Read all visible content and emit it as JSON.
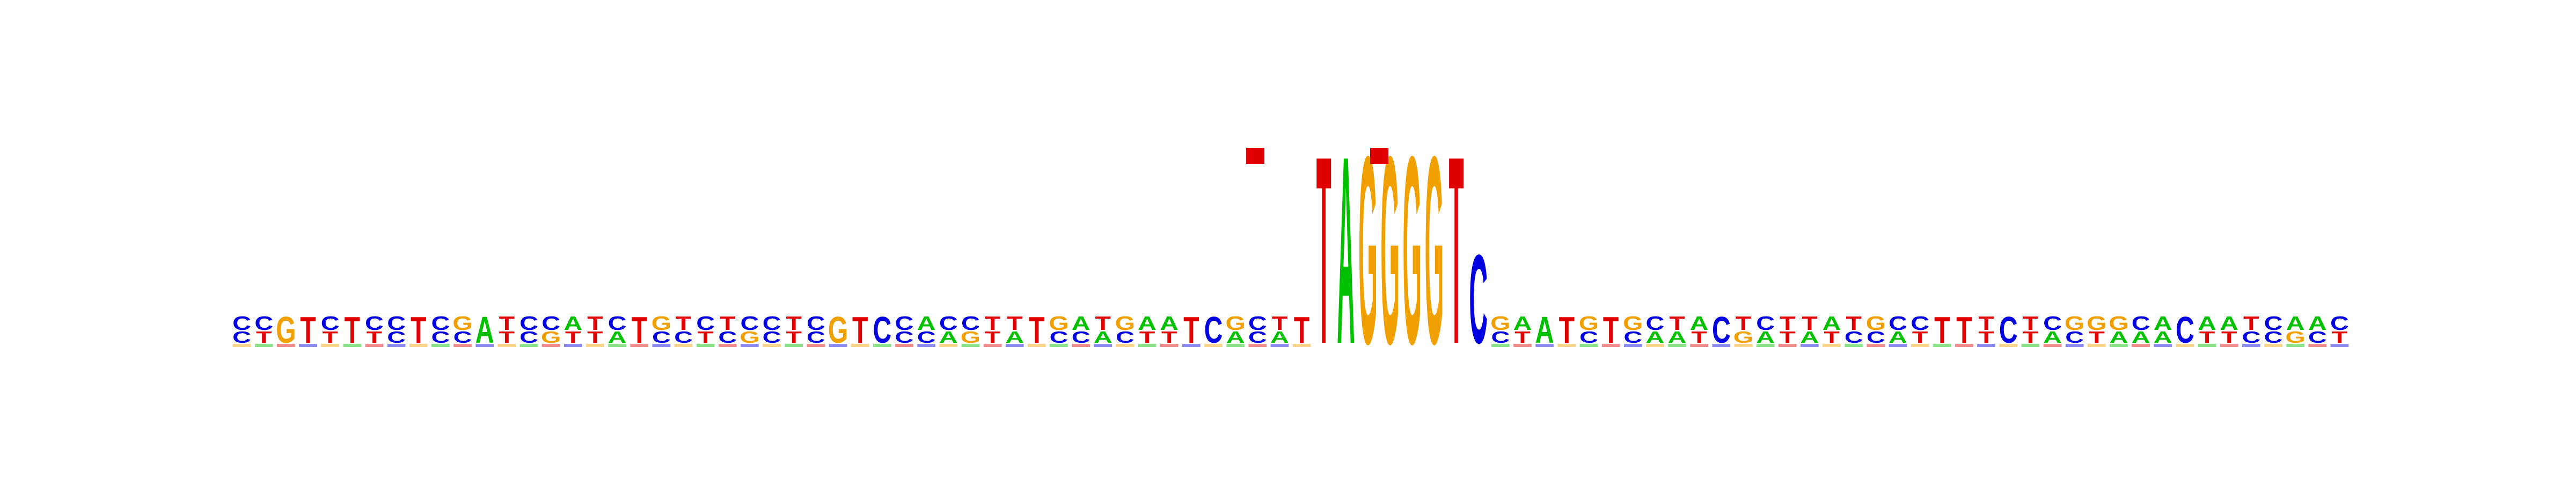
{
  "logo": {
    "colors": {
      "A": "#00c000",
      "C": "#0000e0",
      "G": "#f0a000",
      "T": "#e00000"
    },
    "columns": [
      [
        "C",
        "C"
      ],
      [
        "C",
        "T"
      ],
      [
        "G"
      ],
      [
        "T"
      ],
      [
        "C",
        "T"
      ],
      [
        "T"
      ],
      [
        "C",
        "T"
      ],
      [
        "C",
        "C"
      ],
      [
        "T"
      ],
      [
        "C",
        "C"
      ],
      [
        "G",
        "C"
      ],
      [
        "A"
      ],
      [
        "T",
        "T"
      ],
      [
        "C",
        "C"
      ],
      [
        "C",
        "G"
      ],
      [
        "A",
        "T"
      ],
      [
        "T",
        "T"
      ],
      [
        "C",
        "A"
      ],
      [
        "T"
      ],
      [
        "G",
        "C"
      ],
      [
        "T",
        "C"
      ],
      [
        "C",
        "T"
      ],
      [
        "T",
        "C"
      ],
      [
        "C",
        "G"
      ],
      [
        "C",
        "C"
      ],
      [
        "T",
        "T"
      ],
      [
        "C",
        "C"
      ],
      [
        "G"
      ],
      [
        "T"
      ],
      [
        "C"
      ],
      [
        "C",
        "C"
      ],
      [
        "A",
        "C"
      ],
      [
        "C",
        "A"
      ],
      [
        "C",
        "G"
      ],
      [
        "T",
        "T"
      ],
      [
        "T",
        "A"
      ],
      [
        "T"
      ],
      [
        "G",
        "C"
      ],
      [
        "A",
        "C"
      ],
      [
        "T",
        "A"
      ],
      [
        "G",
        "C"
      ],
      [
        "A",
        "T"
      ],
      [
        "A",
        "T"
      ],
      [
        "T"
      ],
      [
        "C"
      ],
      [
        "G",
        "A"
      ],
      [
        "C",
        "C"
      ],
      [
        "T",
        "A"
      ],
      [
        "T"
      ],
      [
        "A"
      ],
      [
        "G"
      ],
      [
        "G"
      ],
      [
        "G"
      ],
      [
        "G"
      ],
      [
        "T"
      ],
      [
        "C"
      ],
      [
        "C",
        "T"
      ],
      [
        "G",
        "C"
      ],
      [
        "A",
        "T"
      ],
      [
        "A"
      ],
      [
        "T"
      ],
      [
        "G",
        "C"
      ],
      [
        "T"
      ],
      [
        "G",
        "C"
      ],
      [
        "C",
        "A"
      ],
      [
        "T",
        "A"
      ],
      [
        "A",
        "T"
      ],
      [
        "C"
      ],
      [
        "T",
        "G"
      ],
      [
        "C",
        "A"
      ],
      [
        "T",
        "T"
      ],
      [
        "T",
        "A"
      ],
      [
        "A",
        "T"
      ],
      [
        "T",
        "C"
      ],
      [
        "G",
        "C"
      ],
      [
        "C",
        "A"
      ],
      [
        "C",
        "T"
      ],
      [
        "T"
      ],
      [
        "T"
      ],
      [
        "T",
        "T"
      ],
      [
        "C"
      ],
      [
        "T",
        "T"
      ],
      [
        "C",
        "A"
      ],
      [
        "G",
        "C"
      ],
      [
        "G",
        "T"
      ],
      [
        "G",
        "A"
      ],
      [
        "C",
        "A"
      ],
      [
        "A",
        "A"
      ],
      [
        "C"
      ],
      [
        "A",
        "T"
      ],
      [
        "A",
        "T"
      ],
      [
        "T",
        "C"
      ],
      [
        "C",
        "C"
      ],
      [
        "A",
        "G"
      ],
      [
        "A",
        "C"
      ],
      [
        "C",
        "T"
      ]
    ],
    "tall_columns": [
      {
        "index": 49,
        "letter": "T"
      },
      {
        "index": 50,
        "letter": "A"
      },
      {
        "index": 51,
        "letter": "G"
      },
      {
        "index": 52,
        "letter": "G"
      },
      {
        "index": 53,
        "letter": "G"
      },
      {
        "index": 54,
        "letter": "G"
      },
      {
        "index": 55,
        "letter": "T"
      },
      {
        "index": 56,
        "letter": "C"
      }
    ]
  }
}
